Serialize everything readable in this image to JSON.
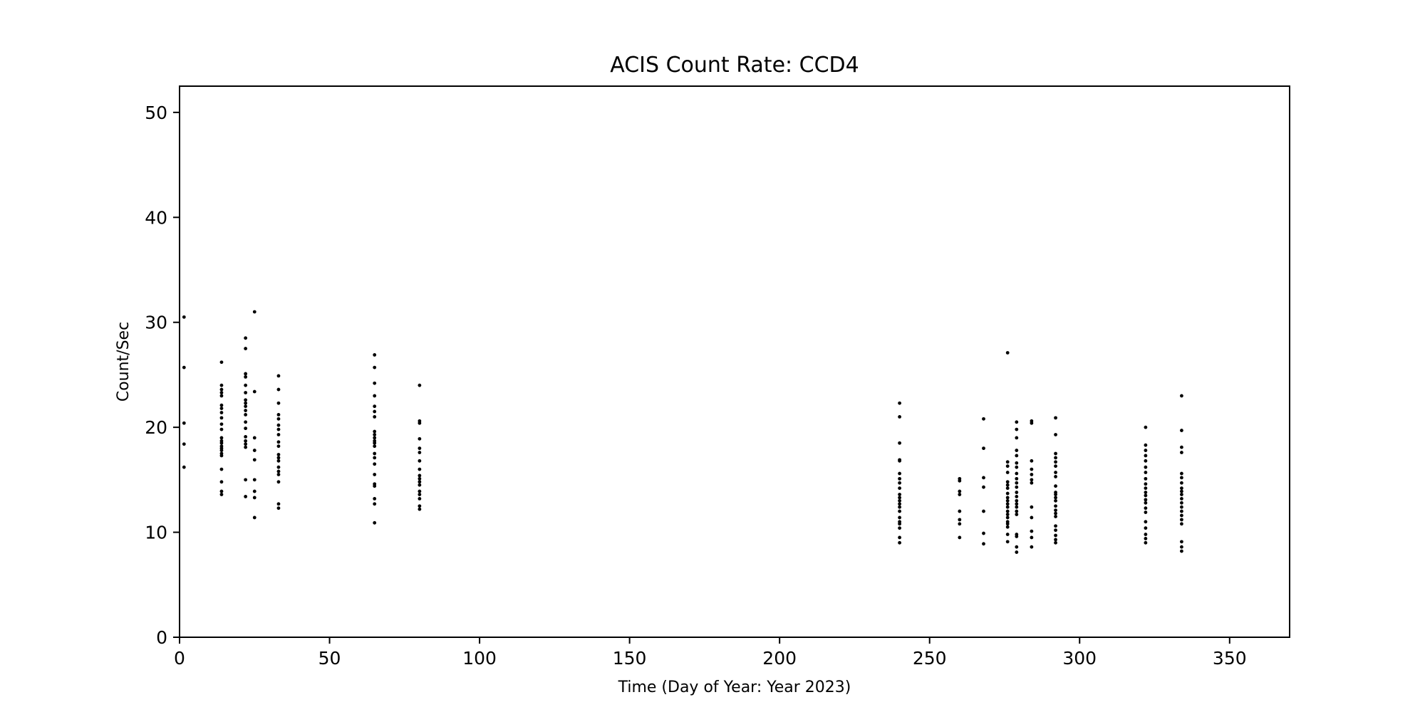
{
  "chart_data": {
    "type": "scatter",
    "title": "ACIS Count Rate: CCD4",
    "xlabel": "Time (Day of Year: Year 2023)",
    "ylabel": "Count/Sec",
    "xlim": [
      0,
      370
    ],
    "ylim": [
      0,
      52.5
    ],
    "xticks": [
      "0",
      "50",
      "100",
      "150",
      "200",
      "250",
      "300",
      "350"
    ],
    "yticks": [
      "0",
      "10",
      "20",
      "30",
      "40",
      "50"
    ],
    "grid": false,
    "legend": "none",
    "marker_color": "#000000",
    "groups": [
      {
        "x": 1.5,
        "y": [
          30.5,
          25.7,
          20.4,
          18.4,
          16.2
        ]
      },
      {
        "x": 14,
        "y": [
          26.2,
          24.0,
          23.6,
          23.3,
          23.0,
          22.1,
          21.8,
          21.4,
          20.9,
          20.3,
          19.8,
          19.0,
          18.7,
          18.5,
          18.2,
          18.0,
          17.8,
          17.5,
          17.3,
          16.0,
          14.8,
          13.9,
          13.6
        ]
      },
      {
        "x": 22,
        "y": [
          28.5,
          27.5,
          25.1,
          24.8,
          24.0,
          23.3,
          22.6,
          22.3,
          22.0,
          21.6,
          21.2,
          20.5,
          19.9,
          19.1,
          18.7,
          18.4,
          18.1,
          15.0,
          13.4
        ]
      },
      {
        "x": 25,
        "y": [
          31.0,
          23.4,
          19.0,
          17.8,
          16.9,
          15.0,
          13.9,
          13.3,
          11.4
        ]
      },
      {
        "x": 33,
        "y": [
          24.9,
          23.6,
          22.3,
          21.2,
          20.8,
          20.2,
          19.8,
          19.3,
          18.6,
          18.2,
          17.4,
          17.1,
          16.8,
          16.2,
          15.8,
          15.5,
          14.8,
          12.7,
          12.3
        ]
      },
      {
        "x": 65,
        "y": [
          26.9,
          25.7,
          24.2,
          23.0,
          22.0,
          21.5,
          21.0,
          19.6,
          19.3,
          19.0,
          18.7,
          18.5,
          18.2,
          17.5,
          17.1,
          16.5,
          15.5,
          14.6,
          14.4,
          13.2,
          12.7,
          10.9
        ]
      },
      {
        "x": 80,
        "y": [
          24.0,
          20.6,
          20.4,
          18.9,
          18.0,
          17.6,
          16.8,
          16.0,
          15.4,
          15.1,
          14.8,
          14.5,
          13.9,
          13.6,
          13.2,
          12.5,
          12.2
        ]
      },
      {
        "x": 240,
        "y": [
          22.3,
          21.0,
          18.5,
          16.9,
          16.8,
          15.6,
          15.1,
          14.7,
          14.2,
          13.6,
          13.3,
          13.0,
          12.7,
          12.4,
          12.0,
          11.4,
          11.0,
          10.8,
          10.4,
          9.5,
          9.0
        ]
      },
      {
        "x": 260,
        "y": [
          15.1,
          14.9,
          13.9,
          13.6,
          12.0,
          11.2,
          10.8,
          9.5
        ]
      },
      {
        "x": 268,
        "y": [
          20.8,
          18.0,
          15.2,
          14.3,
          12.0,
          9.9,
          8.9
        ]
      },
      {
        "x": 276,
        "y": [
          27.1,
          16.7,
          16.3,
          15.7,
          14.8,
          14.5,
          14.2,
          13.7,
          13.3,
          13.0,
          12.7,
          12.4,
          12.0,
          11.7,
          11.4,
          11.0,
          10.8,
          10.5,
          9.8,
          9.1
        ]
      },
      {
        "x": 279,
        "y": [
          20.5,
          19.8,
          19.0,
          17.8,
          17.3,
          16.6,
          16.2,
          15.6,
          15.1,
          14.7,
          14.3,
          13.8,
          13.4,
          13.0,
          12.7,
          12.4,
          12.0,
          11.7,
          9.8,
          9.6,
          8.6,
          8.1
        ]
      },
      {
        "x": 284,
        "y": [
          20.6,
          20.4,
          16.8,
          16.0,
          15.5,
          15.0,
          14.7,
          12.4,
          11.4,
          10.1,
          9.5,
          8.6
        ]
      },
      {
        "x": 292,
        "y": [
          20.9,
          19.3,
          17.5,
          17.1,
          16.7,
          16.3,
          15.7,
          15.3,
          14.4,
          13.8,
          13.6,
          13.3,
          13.0,
          12.5,
          12.1,
          11.8,
          11.5,
          10.6,
          10.2,
          9.7,
          9.3,
          9.0
        ]
      },
      {
        "x": 322,
        "y": [
          20.0,
          18.3,
          17.8,
          17.3,
          16.8,
          16.2,
          15.7,
          15.1,
          14.6,
          14.2,
          13.8,
          13.5,
          13.1,
          12.8,
          12.3,
          11.9,
          11.0,
          10.4,
          9.8,
          9.4,
          9.0
        ]
      },
      {
        "x": 334,
        "y": [
          23.0,
          19.7,
          18.1,
          17.6,
          15.6,
          15.2,
          14.7,
          14.2,
          13.9,
          13.6,
          13.2,
          12.8,
          12.4,
          12.0,
          11.6,
          11.2,
          10.8,
          9.1,
          8.6,
          8.2
        ]
      }
    ]
  }
}
